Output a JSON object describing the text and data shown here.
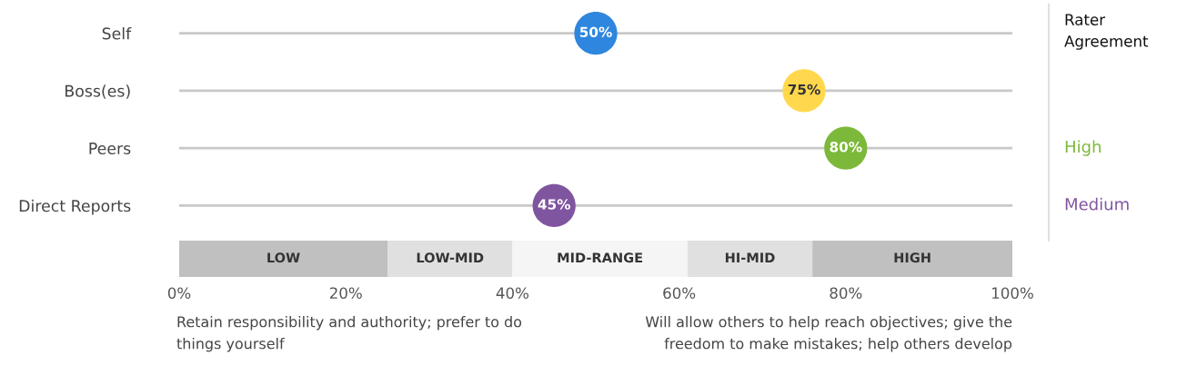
{
  "chart_data": {
    "type": "scatter",
    "orientation": "horizontal",
    "categories": [
      "Self",
      "Boss(es)",
      "Peers",
      "Direct Reports"
    ],
    "values": [
      50,
      75,
      80,
      45
    ],
    "colors": [
      "#2e86de",
      "#ffd84d",
      "#7cb83a",
      "#8055a0"
    ],
    "value_labels": [
      "50%",
      "75%",
      "80%",
      "45%"
    ],
    "marker": "circle",
    "grid": "y",
    "xlim": [
      0,
      100
    ],
    "xticks": [
      {
        "value": 0,
        "label": "0%"
      },
      {
        "value": 20,
        "label": "20%"
      },
      {
        "value": 40,
        "label": "40%"
      },
      {
        "value": 60,
        "label": "60%"
      },
      {
        "value": 80,
        "label": "80%"
      },
      {
        "value": 100,
        "label": "100%"
      }
    ],
    "bands": [
      {
        "axis": "x",
        "from": 0,
        "to": 25,
        "label": "LOW",
        "color": "#c0c0c0"
      },
      {
        "axis": "x",
        "from": 25,
        "to": 40,
        "label": "LOW-MID",
        "color": "#e0e0e0"
      },
      {
        "axis": "x",
        "from": 40,
        "to": 61,
        "label": "MID-RANGE",
        "color": "#f5f5f5"
      },
      {
        "axis": "x",
        "from": 61,
        "to": 76,
        "label": "HI-MID",
        "color": "#e0e0e0"
      },
      {
        "axis": "x",
        "from": 76,
        "to": 100,
        "label": "HIGH",
        "color": "#c0c0c0"
      }
    ],
    "legend_title": "Rater Agreement",
    "annotations": [
      "High",
      "Medium",
      "Retain responsibility and authority; prefer to do things yourself",
      "Will allow others to help reach objectives; give the freedom to make mistakes; help others develop"
    ]
  }
}
